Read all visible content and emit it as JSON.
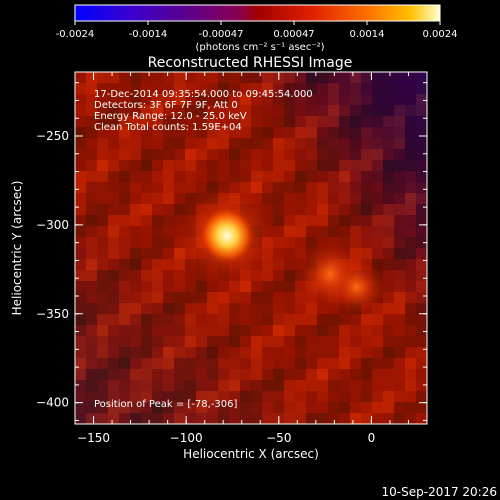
{
  "colorbar": {
    "ticks": [
      "-0.0024",
      "-0.0014",
      "-0.00047",
      "0.00047",
      "0.0014",
      "0.0024"
    ],
    "unit_label": "(photons cm⁻² s⁻¹ asec⁻²)",
    "min": -0.0024,
    "max": 0.0024
  },
  "chart_data": {
    "type": "heatmap",
    "title": "Reconstructed RHESSI Image",
    "xlabel": "Heliocentric X (arcsec)",
    "ylabel": "Heliocentric Y (arcsec)",
    "xlim": [
      -160,
      30
    ],
    "ylim": [
      -412,
      -214
    ],
    "x_ticks": [
      -150,
      -100,
      -50,
      0
    ],
    "y_ticks": [
      -250,
      -300,
      -350,
      -400
    ],
    "annotations": [
      "17-Dec-2014 09:35:54.000 to 09:45:54.000",
      "Detectors: 3F 6F 7F 9F, Att 0",
      "Energy Range: 12.0 - 25.0 keV",
      "Clean     Total counts: 1.59E+04"
    ],
    "peak_label": "Position of Peak = [-78,-306]",
    "sources": [
      {
        "x": -78,
        "y": -306,
        "intensity": 1.0
      },
      {
        "x": -22,
        "y": -328,
        "intensity": 0.5
      },
      {
        "x": -8,
        "y": -335,
        "intensity": 0.35
      }
    ]
  },
  "footer": {
    "timestamp": "10-Sep-2017 20:26"
  }
}
